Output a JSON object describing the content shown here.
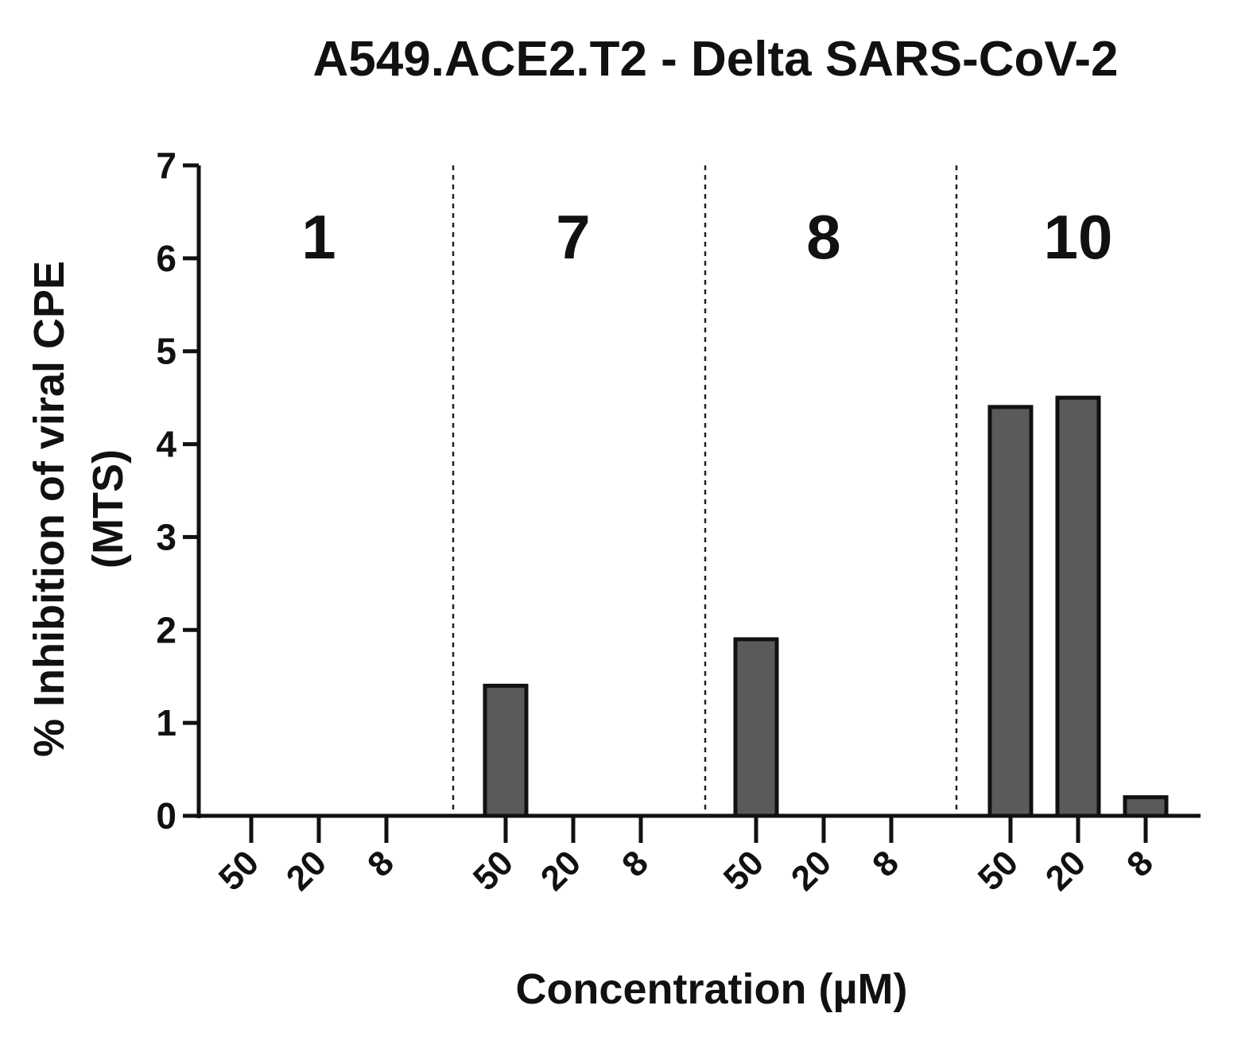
{
  "chart_data": {
    "type": "bar",
    "title": "A549.ACE2.T2 - Delta SARS-CoV-2",
    "ylabel_lines": [
      "% Inhibition of viral CPE",
      "(MTS)"
    ],
    "xlabel": "Concentration (µM)",
    "ylim": [
      0,
      7
    ],
    "yticks": [
      "0",
      "1",
      "2",
      "3",
      "4",
      "5",
      "6",
      "7"
    ],
    "grid": false,
    "legend": "none",
    "bar_color": "#5a5a5a",
    "groups": [
      {
        "label": "1",
        "categories": [
          "50",
          "20",
          "8"
        ],
        "values": [
          0,
          0,
          0
        ]
      },
      {
        "label": "7",
        "categories": [
          "50",
          "20",
          "8"
        ],
        "values": [
          1.4,
          0,
          0
        ]
      },
      {
        "label": "8",
        "categories": [
          "50",
          "20",
          "8"
        ],
        "values": [
          1.9,
          0,
          0
        ]
      },
      {
        "label": "10",
        "categories": [
          "50",
          "20",
          "8"
        ],
        "values": [
          4.4,
          4.5,
          0.2
        ]
      }
    ]
  }
}
